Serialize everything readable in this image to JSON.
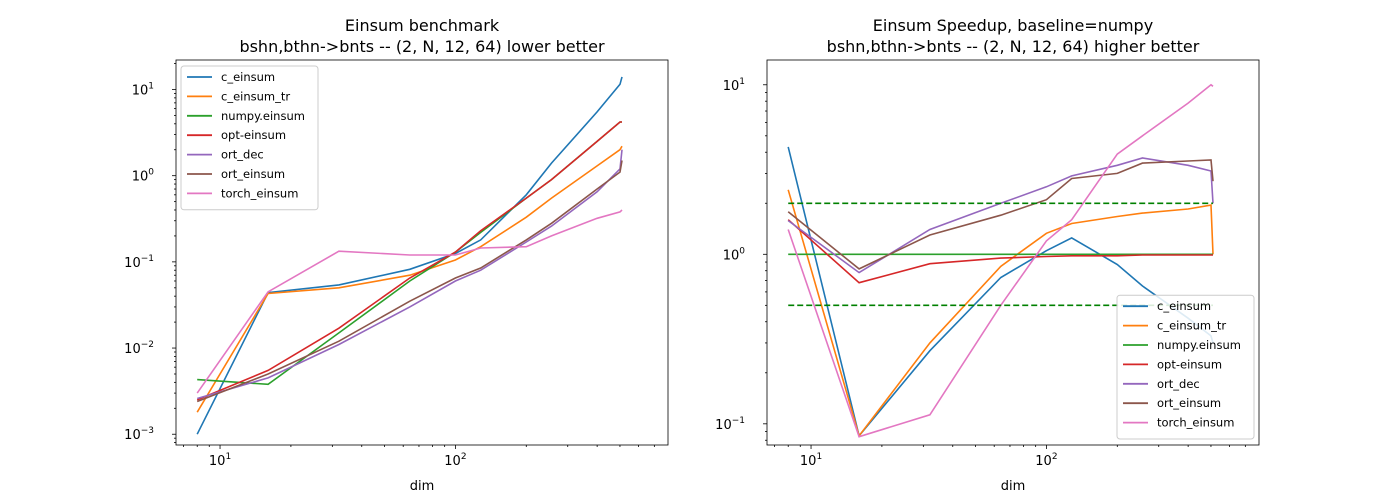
{
  "colors": {
    "c_einsum": "#1f77b4",
    "c_einsum_tr": "#ff7f0e",
    "numpy.einsum": "#2ca02c",
    "opt-einsum": "#d62728",
    "ort_dec": "#9467bd",
    "ort_einsum": "#8c564b",
    "torch_einsum": "#e377c2",
    "reference_lines": "#008000"
  },
  "chart_data": [
    {
      "type": "line",
      "title": "Einsum benchmark",
      "subtitle": "bshn,bthn->bnts -- (2, N, 12, 64) lower better",
      "xlabel": "dim",
      "ylabel": "",
      "xscale": "log",
      "yscale": "log",
      "xlim": [
        6.5,
        800
      ],
      "ylim": [
        0.00075,
        22
      ],
      "xticks": [
        {
          "value": 10,
          "base": "10",
          "exp": "1"
        },
        {
          "value": 100,
          "base": "10",
          "exp": "2"
        }
      ],
      "yticks": [
        {
          "value": 0.001,
          "base": "10",
          "exp": "−3"
        },
        {
          "value": 0.01,
          "base": "10",
          "exp": "−2"
        },
        {
          "value": 0.1,
          "base": "10",
          "exp": "−1"
        },
        {
          "value": 1,
          "base": "10",
          "exp": "0"
        },
        {
          "value": 10,
          "base": "10",
          "exp": "1"
        }
      ],
      "legend_position": "upper-left",
      "grid": false,
      "x": [
        8,
        16,
        32,
        64,
        100,
        128,
        200,
        256,
        400,
        500,
        510
      ],
      "series": [
        {
          "name": "c_einsum",
          "values": [
            0.001,
            0.044,
            0.054,
            0.082,
            0.125,
            0.18,
            0.6,
            1.4,
            5.5,
            11.5,
            14
          ]
        },
        {
          "name": "c_einsum_tr",
          "values": [
            0.0018,
            0.043,
            0.05,
            0.07,
            0.105,
            0.15,
            0.33,
            0.55,
            1.3,
            2.0,
            2.2
          ]
        },
        {
          "name": "numpy.einsum",
          "values": [
            0.0043,
            0.0038,
            0.015,
            0.06,
            0.13,
            0.22,
            0.55,
            0.9,
            2.5,
            4.2,
            4.2
          ]
        },
        {
          "name": "opt-einsum",
          "values": [
            0.0025,
            0.0055,
            0.017,
            0.065,
            0.13,
            0.23,
            0.55,
            0.9,
            2.5,
            4.2,
            4.2
          ]
        },
        {
          "name": "ort_dec",
          "values": [
            0.0026,
            0.0045,
            0.011,
            0.03,
            0.06,
            0.08,
            0.17,
            0.26,
            0.65,
            1.2,
            2.0
          ]
        },
        {
          "name": "ort_einsum",
          "values": [
            0.0024,
            0.005,
            0.012,
            0.035,
            0.065,
            0.085,
            0.18,
            0.28,
            0.7,
            1.1,
            1.5
          ]
        },
        {
          "name": "torch_einsum",
          "values": [
            0.003,
            0.045,
            0.133,
            0.12,
            0.12,
            0.145,
            0.15,
            0.2,
            0.32,
            0.38,
            0.4
          ]
        }
      ]
    },
    {
      "type": "line",
      "title": "Einsum Speedup, baseline=numpy",
      "subtitle": "bshn,bthn->bnts -- (2, N, 12, 64) higher better",
      "xlabel": "dim",
      "ylabel": "",
      "xscale": "log",
      "yscale": "log",
      "xlim": [
        6.5,
        800
      ],
      "ylim": [
        0.075,
        14
      ],
      "xticks": [
        {
          "value": 10,
          "base": "10",
          "exp": "1"
        },
        {
          "value": 100,
          "base": "10",
          "exp": "2"
        }
      ],
      "yticks": [
        {
          "value": 0.1,
          "base": "10",
          "exp": "−1"
        },
        {
          "value": 1,
          "base": "10",
          "exp": "0"
        },
        {
          "value": 10,
          "base": "10",
          "exp": "1"
        }
      ],
      "legend_position": "lower-right",
      "grid": false,
      "reference_lines": [
        {
          "y": 2,
          "style": "dashed"
        },
        {
          "y": 0.5,
          "style": "dashed"
        }
      ],
      "x": [
        8,
        16,
        32,
        64,
        100,
        128,
        200,
        256,
        400,
        500,
        510
      ],
      "series": [
        {
          "name": "c_einsum",
          "values": [
            4.3,
            0.085,
            0.27,
            0.73,
            1.05,
            1.25,
            0.87,
            0.65,
            0.42,
            0.33,
            0.3
          ]
        },
        {
          "name": "c_einsum_tr",
          "values": [
            2.4,
            0.085,
            0.3,
            0.85,
            1.33,
            1.52,
            1.67,
            1.75,
            1.85,
            1.95,
            1.0
          ]
        },
        {
          "name": "numpy.einsum",
          "values": [
            1.0,
            1.0,
            1.0,
            1.0,
            1.0,
            1.0,
            1.0,
            1.0,
            1.0,
            1.0,
            1.0
          ]
        },
        {
          "name": "opt-einsum",
          "values": [
            1.6,
            0.68,
            0.88,
            0.95,
            0.97,
            0.98,
            0.98,
            0.99,
            0.99,
            0.99,
            0.99
          ]
        },
        {
          "name": "ort_dec",
          "values": [
            1.58,
            0.78,
            1.4,
            2.0,
            2.5,
            2.9,
            3.35,
            3.7,
            3.35,
            3.1,
            2.0
          ]
        },
        {
          "name": "ort_einsum",
          "values": [
            1.78,
            0.82,
            1.3,
            1.7,
            2.1,
            2.8,
            3.0,
            3.45,
            3.55,
            3.6,
            2.7
          ]
        },
        {
          "name": "torch_einsum",
          "values": [
            1.4,
            0.084,
            0.113,
            0.5,
            1.2,
            1.6,
            3.9,
            5.0,
            7.8,
            10.0,
            9.8
          ]
        }
      ]
    }
  ]
}
